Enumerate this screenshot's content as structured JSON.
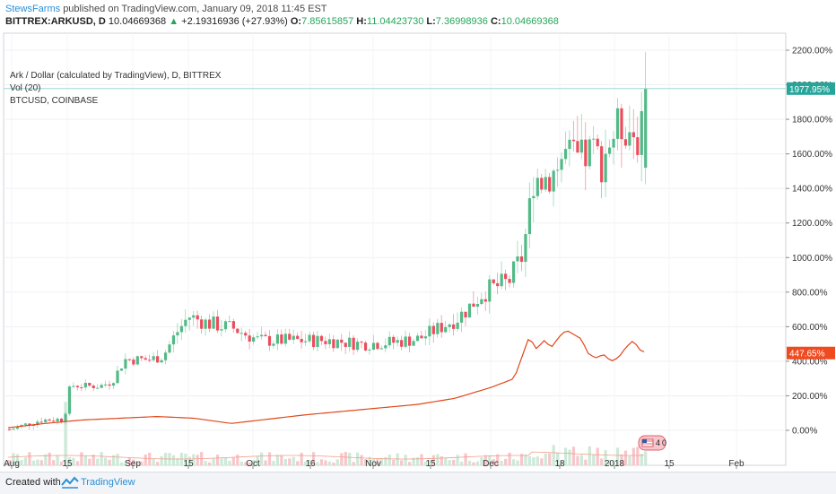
{
  "header": {
    "author": "StewsFarms",
    "published_text": "published on TradingView.com, January 09, 2018 11:45 EST",
    "symbol": "BITTREX:ARKUSD, D",
    "last": "10.04669368",
    "change": "+2.19316936 (+27.93%)",
    "o_label": "O:",
    "o_value": "7.85615857",
    "h_label": "H:",
    "h_value": "11.04423730",
    "l_label": "L:",
    "l_value": "7.36998936",
    "c_label": "C:",
    "c_value": "10.04669368"
  },
  "legend": {
    "line1": "Ark / Dollar (calculated by TradingView), D, BITTREX",
    "line2": "Vol (20)",
    "line3": "BTCUSD, COINBASE"
  },
  "footer": {
    "created": "Created with",
    "brand": "TradingView"
  },
  "colors": {
    "up": "#53b987",
    "down": "#eb4d5c",
    "btc": "#e0471a",
    "vol_up": "#cde9d8",
    "vol_down": "#f7c6cb",
    "ma": "#f0a08a",
    "last_label": "#26a69a",
    "btc_label": "#f04a1f"
  },
  "chart_data": {
    "type": "candlestick",
    "y_axis_unit": "%",
    "y_ticks": [
      "2200.00%",
      "2000.00%",
      "1800.00%",
      "1600.00%",
      "1400.00%",
      "1200.00%",
      "1000.00%",
      "800.00%",
      "600.00%",
      "400.00%",
      "200.00%",
      "0.00%"
    ],
    "ylim": [
      -100,
      2250
    ],
    "x_ticks": [
      "Aug",
      "15",
      "Sep",
      "15",
      "Oct",
      "16",
      "Nov",
      "15",
      "Dec",
      "18",
      "2018",
      "15",
      "Feb"
    ],
    "last_value_label": "1977.95%",
    "btc_value_label": "447.65%",
    "series": [
      {
        "name": "ARKUSD",
        "style": "candles"
      },
      {
        "name": "BTCUSD, COINBASE",
        "style": "line"
      },
      {
        "name": "Vol (20)",
        "style": "volume"
      }
    ]
  }
}
